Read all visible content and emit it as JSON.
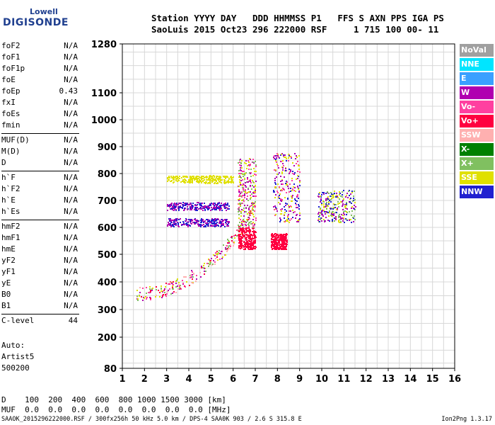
{
  "logo": {
    "line1": "Lowell",
    "line2": "DIGISONDE"
  },
  "header": {
    "line1": "Station YYYY DAY   DDD HHMMSS P1   FFS S AXN PPS IGA PS",
    "line2": "SaoLuis 2015 Oct23 296 222000 RSF     1 715 100 00- 11"
  },
  "params": [
    {
      "name": "foF2",
      "value": "N/A"
    },
    {
      "name": "foF1",
      "value": "N/A"
    },
    {
      "name": "foF1p",
      "value": "N/A"
    },
    {
      "name": "foE",
      "value": "N/A"
    },
    {
      "name": "foEp",
      "value": "0.43"
    },
    {
      "name": "fxI",
      "value": "N/A"
    },
    {
      "name": "foEs",
      "value": "N/A"
    },
    {
      "name": "fmin",
      "value": "N/A"
    },
    {
      "name": "MUF(D)",
      "value": "N/A"
    },
    {
      "name": "M(D)",
      "value": "N/A"
    },
    {
      "name": "D",
      "value": "N/A"
    },
    {
      "name": "h`F",
      "value": "N/A"
    },
    {
      "name": "h`F2",
      "value": "N/A"
    },
    {
      "name": "h`E",
      "value": "N/A"
    },
    {
      "name": "h`Es",
      "value": "N/A"
    },
    {
      "name": "hmF2",
      "value": "N/A"
    },
    {
      "name": "hmF1",
      "value": "N/A"
    },
    {
      "name": "hmE",
      "value": "N/A"
    },
    {
      "name": "yF2",
      "value": "N/A"
    },
    {
      "name": "yF1",
      "value": "N/A"
    },
    {
      "name": "yE",
      "value": "N/A"
    },
    {
      "name": "B0",
      "value": "N/A"
    },
    {
      "name": "B1",
      "value": "N/A"
    },
    {
      "name": "C-level",
      "value": "44"
    }
  ],
  "auto": {
    "label": "Auto:",
    "artist": "Artist5",
    "version": "500200"
  },
  "legend": [
    {
      "label": "NoVal",
      "color": "#a0a0a0"
    },
    {
      "label": "NNE",
      "color": "#00e5ff"
    },
    {
      "label": "E",
      "color": "#3aa0ff"
    },
    {
      "label": "W",
      "color": "#b000b0"
    },
    {
      "label": "Vo-",
      "color": "#ff40a0"
    },
    {
      "label": "Vo+",
      "color": "#ff0040"
    },
    {
      "label": "SSW",
      "color": "#ffb0b0"
    },
    {
      "label": "X-",
      "color": "#008000"
    },
    {
      "label": "X+",
      "color": "#80c060"
    },
    {
      "label": "SSE",
      "color": "#e0e000"
    },
    {
      "label": "NNW",
      "color": "#2020d0"
    }
  ],
  "dtable": {
    "row1": "D    100  200  400  600  800 1000 1500 3000 [km]",
    "row2": "MUF  0.0  0.0  0.0  0.0  0.0  0.0  0.0  0.0 [MHz]"
  },
  "footer": "SAAOK_2015296222000.RSF / 300fx256h 50 kHz 5.0 km / DPS-4 SAA0K 903 / 2.6 S 315.8 E",
  "version_text": "Ion2Png 1.3.17",
  "chart_data": {
    "type": "scatter",
    "x_ticks": [
      1,
      2,
      3,
      4,
      5,
      6,
      7,
      8,
      9,
      10,
      11,
      12,
      13,
      14,
      15,
      16
    ],
    "y_ticks": [
      80,
      200,
      300,
      400,
      500,
      600,
      700,
      800,
      900,
      1000,
      1100,
      1280
    ],
    "xlim": [
      1,
      16
    ],
    "ylim": [
      80,
      1280
    ],
    "grid": true,
    "traces": [
      {
        "name": "F-trace",
        "x_range": [
          1.6,
          6.8
        ],
        "y_start": 360,
        "y_end": 650,
        "colors": [
          "#ff40a0",
          "#e0e000",
          "#80c060",
          "#ffb0b0",
          "#ff0040",
          "#b000b0"
        ]
      },
      {
        "name": "W-band-680",
        "x_range": [
          3.0,
          5.8
        ],
        "y": 680,
        "colors": [
          "#b000b0",
          "#2020d0"
        ]
      },
      {
        "name": "W-band-620",
        "x_range": [
          3.0,
          5.8
        ],
        "y": 620,
        "colors": [
          "#b000b0",
          "#2020d0"
        ]
      },
      {
        "name": "SSE-band-780",
        "x_range": [
          3.0,
          6.0
        ],
        "y": 780,
        "colors": [
          "#e0e000"
        ]
      },
      {
        "name": "Vo-plus-cluster",
        "x_range": [
          6.2,
          7.0
        ],
        "y_range": [
          520,
          600
        ],
        "colors": [
          "#ff0040"
        ]
      },
      {
        "name": "Vo-plus-cluster-8",
        "x_range": [
          7.7,
          8.4
        ],
        "y_range": [
          520,
          580
        ],
        "colors": [
          "#ff0040"
        ]
      },
      {
        "name": "spread-6.5",
        "x_range": [
          6.2,
          7.0
        ],
        "y_range": [
          600,
          860
        ],
        "colors": [
          "#e0e000",
          "#b000b0",
          "#80c060",
          "#ff40a0"
        ]
      },
      {
        "name": "spread-8",
        "x_range": [
          7.8,
          9.0
        ],
        "y_range": [
          620,
          880
        ],
        "colors": [
          "#b000b0",
          "#2020d0",
          "#ff40a0",
          "#e0e000"
        ]
      },
      {
        "name": "spread-10",
        "x_range": [
          9.8,
          11.5
        ],
        "y_range": [
          620,
          740
        ],
        "colors": [
          "#e0e000",
          "#b000b0",
          "#2020d0",
          "#80c060"
        ]
      }
    ]
  }
}
